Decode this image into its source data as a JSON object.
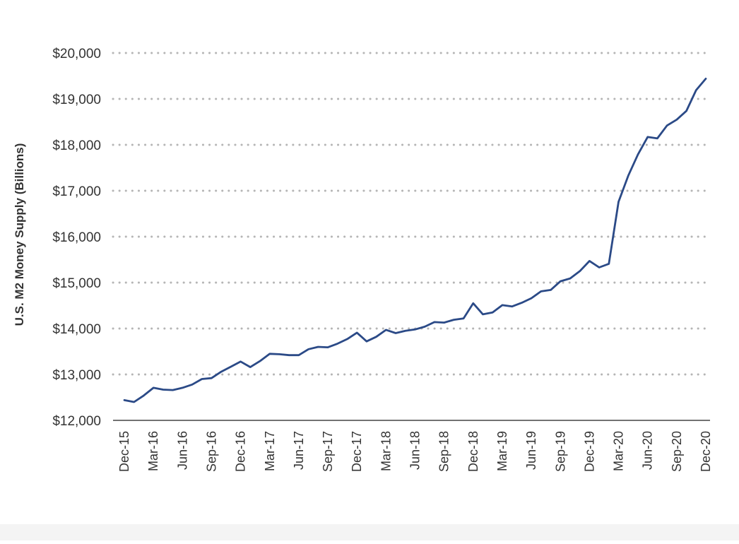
{
  "chart_data": {
    "type": "line",
    "title": "",
    "xlabel": "",
    "ylabel": "U.S. M2 Money Supply (Billions)",
    "ylim": [
      12000,
      20000
    ],
    "y_ticks": [
      12000,
      13000,
      14000,
      15000,
      16000,
      17000,
      18000,
      19000,
      20000
    ],
    "y_tick_labels": [
      "$12,000",
      "$13,000",
      "$14,000",
      "$15,000",
      "$16,000",
      "$17,000",
      "$18,000",
      "$19,000",
      "$20,000"
    ],
    "x_tick_labels": [
      "Dec-15",
      "Mar-16",
      "Jun-16",
      "Sep-16",
      "Dec-16",
      "Mar-17",
      "Jun-17",
      "Sep-17",
      "Dec-17",
      "Mar-18",
      "Jun-18",
      "Sep-18",
      "Dec-18",
      "Mar-19",
      "Jun-19",
      "Sep-19",
      "Dec-19",
      "Mar-20",
      "Jun-20",
      "Sep-20",
      "Dec-20"
    ],
    "grid": "horizontal-dotted",
    "line_color": "#2b4a87",
    "series": [
      {
        "x": [
          "Dec-15",
          "Jan-16",
          "Feb-16",
          "Mar-16",
          "Apr-16",
          "May-16",
          "Jun-16",
          "Jul-16",
          "Aug-16",
          "Sep-16",
          "Oct-16",
          "Nov-16",
          "Dec-16",
          "Jan-17",
          "Feb-17",
          "Mar-17",
          "Apr-17",
          "May-17",
          "Jun-17",
          "Jul-17",
          "Aug-17",
          "Sep-17",
          "Oct-17",
          "Nov-17",
          "Dec-17",
          "Jan-18",
          "Feb-18",
          "Mar-18",
          "Apr-18",
          "May-18",
          "Jun-18",
          "Jul-18",
          "Aug-18",
          "Sep-18",
          "Oct-18",
          "Nov-18",
          "Dec-18",
          "Jan-19",
          "Feb-19",
          "Mar-19",
          "Apr-19",
          "May-19",
          "Jun-19",
          "Jul-19",
          "Aug-19",
          "Sep-19",
          "Oct-19",
          "Nov-19",
          "Dec-19",
          "Jan-20",
          "Feb-20",
          "Mar-20",
          "Apr-20",
          "May-20",
          "Jun-20",
          "Jul-20",
          "Aug-20",
          "Sep-20",
          "Oct-20",
          "Nov-20",
          "Dec-20"
        ],
        "values": [
          12440,
          12400,
          12540,
          12710,
          12670,
          12660,
          12710,
          12780,
          12900,
          12920,
          13060,
          13170,
          13280,
          13160,
          13290,
          13450,
          13440,
          13420,
          13420,
          13550,
          13600,
          13590,
          13670,
          13770,
          13910,
          13720,
          13820,
          13970,
          13900,
          13950,
          13980,
          14040,
          14140,
          14130,
          14190,
          14220,
          14550,
          14310,
          14350,
          14510,
          14480,
          14560,
          14660,
          14810,
          14840,
          15030,
          15090,
          15250,
          15470,
          15330,
          15410,
          16760,
          17330,
          17790,
          18170,
          18140,
          18420,
          18550,
          18740,
          19190,
          19440
        ]
      }
    ]
  }
}
